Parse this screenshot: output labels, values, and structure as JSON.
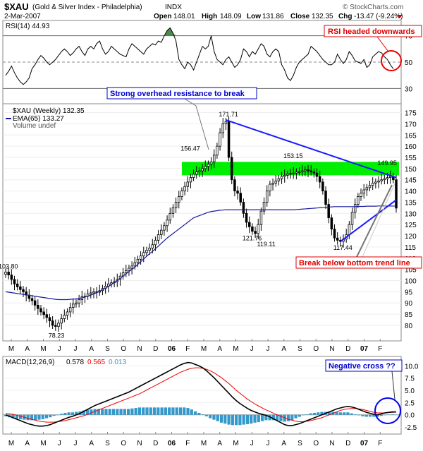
{
  "header": {
    "symbol": "$XAU",
    "description": "(Gold & Silver Index - Philadelphia)",
    "exchange": "INDX",
    "date": "2-Mar-2007",
    "open_label": "Open",
    "open": "148.01",
    "high_label": "High",
    "high": "148.09",
    "low_label": "Low",
    "low": "131.86",
    "close_label": "Close",
    "close": "132.35",
    "chg_label": "Chg",
    "chg": "-13.47 (-9.24%)",
    "copyright": "© StockCharts.com"
  },
  "colors": {
    "up_candle": "#ffffff",
    "down_candle": "#000000",
    "ema": "#1a1a9c",
    "trendline": "#1a1aff",
    "resistance_band": "#00ee00",
    "rsi_fill": "#4a8a4a",
    "macd_line": "#000000",
    "signal_line": "#ee0000",
    "histogram": "#3399cc",
    "annotation_red": "#dd0000",
    "annotation_blue": "#0000cc"
  },
  "chart_data": [
    {
      "panel": "rsi",
      "type": "line",
      "label": "RSI(14) 44.93",
      "ylim": [
        20,
        80
      ],
      "yticks": [
        30,
        50,
        70
      ],
      "levels": [
        30,
        50,
        70
      ],
      "values": [
        40,
        43,
        47,
        42,
        38,
        35,
        33,
        35,
        38,
        45,
        48,
        52,
        55,
        53,
        50,
        48,
        50,
        52,
        55,
        58,
        60,
        58,
        55,
        57,
        60,
        62,
        58,
        55,
        60,
        62,
        60,
        64,
        66,
        60,
        56,
        58,
        62,
        60,
        58,
        56,
        55,
        54,
        60,
        64,
        62,
        60,
        58,
        56,
        60,
        62,
        64,
        63,
        66,
        65,
        70,
        74,
        76,
        72,
        66,
        52,
        48,
        45,
        50,
        48,
        44,
        50,
        56,
        62,
        60,
        62,
        70,
        58,
        52,
        50,
        48,
        52,
        54,
        50,
        46,
        48,
        52,
        60,
        58,
        54,
        58,
        56,
        60,
        64,
        62,
        56,
        54,
        58,
        60,
        58,
        48,
        44,
        38,
        36,
        40,
        46,
        50,
        52,
        54,
        56,
        62,
        60,
        58,
        55,
        52,
        50,
        48,
        48,
        50,
        56,
        52,
        49,
        52,
        58,
        55,
        51,
        50,
        49,
        52,
        46,
        48,
        54,
        56,
        58,
        57,
        54,
        52,
        48,
        44.93
      ]
    },
    {
      "panel": "price",
      "type": "candlestick",
      "label": "$XAU (Weekly) 132.35",
      "ema_label": "EMA(65) 133.27",
      "volume_label": "Volume undef",
      "ylim": [
        74,
        178
      ],
      "yticks": [
        80,
        85,
        90,
        95,
        100,
        105,
        110,
        115,
        120,
        125,
        130,
        135,
        140,
        145,
        150,
        155,
        160,
        165,
        170,
        175
      ],
      "x_labels": [
        "M",
        "A",
        "M",
        "J",
        "J",
        "A",
        "S",
        "O",
        "N",
        "D",
        "06",
        "F",
        "M",
        "A",
        "M",
        "J",
        "J",
        "A",
        "S",
        "O",
        "N",
        "D",
        "07",
        "F"
      ],
      "close": [
        103.8,
        102.5,
        100.5,
        98.5,
        97.2,
        96.0,
        95.0,
        93.5,
        92.0,
        91.0,
        89.0,
        87.5,
        86.0,
        84.8,
        83.5,
        82.0,
        80.0,
        79.5,
        81.0,
        83.0,
        84.5,
        86.0,
        88.0,
        89.5,
        90.0,
        91.5,
        92.8,
        93.0,
        94.0,
        94.5,
        95.0,
        94.8,
        95.5,
        96.5,
        97.5,
        98.5,
        99.0,
        99.5,
        100.5,
        102.0,
        103.5,
        104.5,
        105.5,
        106.5,
        108.0,
        109.5,
        111.0,
        112.5,
        113.5,
        114.5,
        116.0,
        118.0,
        120.5,
        122.5,
        124.5,
        127.0,
        130.0,
        132.5,
        135.0,
        137.5,
        140.0,
        142.0,
        144.0,
        146.0,
        147.5,
        148.5,
        149.0,
        150.0,
        151.0,
        152.0,
        153.0,
        156.0,
        160.0,
        166.0,
        170.0,
        171.0,
        155.0,
        145.0,
        140.0,
        139.0,
        135.0,
        130.0,
        126.0,
        124.0,
        122.0,
        121.0,
        125.0,
        131.0,
        135.0,
        140.0,
        143.0,
        143.5,
        144.5,
        145.5,
        146.5,
        147.0,
        147.5,
        147.8,
        148.0,
        148.5,
        148.5,
        149.0,
        149.5,
        149.0,
        148.5,
        148.0,
        146.5,
        144.0,
        140.0,
        134.0,
        128.0,
        123.0,
        119.0,
        118.0,
        117.5,
        118.5,
        120.5,
        125.0,
        130.5,
        134.0,
        137.5,
        139.0,
        140.5,
        141.5,
        142.5,
        143.5,
        144.0,
        144.5,
        145.0,
        145.5,
        146.0,
        146.5,
        145.0,
        132.35
      ],
      "ema": [
        95,
        94.8,
        94.6,
        94.4,
        94.2,
        94.0,
        93.8,
        93.6,
        93.4,
        93.2,
        93.0,
        92.8,
        92.6,
        92.4,
        92.2,
        92.0,
        91.8,
        91.6,
        91.5,
        91.5,
        91.5,
        91.5,
        91.6,
        91.7,
        91.8,
        92.0,
        92.3,
        92.6,
        93.0,
        93.5,
        94.0,
        94.6,
        95.2,
        95.9,
        96.6,
        97.4,
        98.2,
        99.1,
        100.0,
        101.0,
        102.0,
        103.0,
        104.0,
        105.0,
        106.0,
        107.2,
        108.4,
        109.6,
        110.8,
        112.0,
        113.0,
        114.2,
        115.4,
        116.6,
        117.8,
        119.0,
        120.0,
        121.0,
        122.0,
        123.0,
        124.0,
        125.0,
        126.0,
        127.0,
        128.0,
        128.5,
        129.0,
        129.5,
        130.0,
        130.5,
        130.8,
        131.0,
        131.2,
        131.4,
        131.5,
        131.6,
        131.6,
        131.6,
        131.6,
        131.6,
        131.6,
        131.6,
        131.6,
        131.6,
        131.6,
        131.6,
        131.6,
        131.6,
        131.6,
        131.6,
        131.6,
        131.6,
        131.6,
        131.6,
        131.6,
        131.6,
        131.6,
        131.6,
        131.6,
        131.7,
        131.8,
        131.9,
        132.0,
        132.1,
        132.2,
        132.3,
        132.4,
        132.5,
        132.6,
        132.7,
        132.8,
        132.9,
        133.0,
        133.0,
        133.0,
        133.0,
        133.0,
        133.0,
        133.0,
        133.0,
        133.1,
        133.1,
        133.1,
        133.2,
        133.2,
        133.2,
        133.2,
        133.3,
        133.3,
        133.3,
        133.27,
        133.27,
        133.27,
        133.27
      ],
      "annotations": [
        {
          "label": "103.80",
          "x": 0,
          "y": 103.8
        },
        {
          "label": "78.23",
          "x": 17,
          "y": 78.23
        },
        {
          "label": "156.47",
          "x": 62,
          "y": 156.47
        },
        {
          "label": "121.76",
          "x": 83,
          "y": 121.76
        },
        {
          "label": "171.71",
          "x": 75,
          "y": 171.71
        },
        {
          "label": "119.11",
          "x": 88,
          "y": 119.11
        },
        {
          "label": "153.15",
          "x": 97,
          "y": 153.15
        },
        {
          "label": "117.44",
          "x": 114,
          "y": 117.44
        },
        {
          "label": "149.95",
          "x": 129,
          "y": 149.95
        }
      ],
      "callouts": {
        "resistance": "Strong overhead resistance to break",
        "breakdown": "Break below bottom trend line"
      },
      "resistance_zone": [
        147,
        153
      ],
      "upper_trendline": [
        [
          75,
          171.71
        ],
        [
          133,
          146
        ]
      ],
      "lower_trendline": [
        [
          114,
          117.44
        ],
        [
          133,
          136
        ]
      ]
    },
    {
      "panel": "macd",
      "type": "line",
      "label": "MACD(12,26,9)",
      "macd_value": "0.578",
      "signal_value": "0.565",
      "hist_value": "0.013",
      "ylim": [
        -3.5,
        11.5
      ],
      "yticks": [
        -2.5,
        0.0,
        2.5,
        5.0,
        7.5,
        10.0
      ],
      "x_labels": [
        "M",
        "A",
        "M",
        "J",
        "J",
        "A",
        "S",
        "O",
        "N",
        "D",
        "06",
        "F",
        "M",
        "A",
        "M",
        "J",
        "J",
        "A",
        "S",
        "O",
        "N",
        "D",
        "07",
        "F"
      ],
      "callout": "Negative cross ??",
      "rsi_callout": "RSI headed downwards",
      "macd": [
        0,
        -0.3,
        -0.6,
        -0.9,
        -1.2,
        -1.5,
        -1.8,
        -2.0,
        -2.2,
        -2.3,
        -2.3,
        -2.2,
        -2.0,
        -1.7,
        -1.4,
        -1.1,
        -0.8,
        -0.5,
        -0.3,
        0.0,
        0.3,
        0.7,
        1.1,
        1.5,
        1.9,
        2.2,
        2.5,
        2.8,
        3.1,
        3.4,
        3.7,
        4.0,
        4.3,
        4.6,
        5.0,
        5.4,
        5.8,
        6.2,
        6.6,
        7.0,
        7.4,
        7.8,
        8.2,
        8.6,
        9.0,
        9.4,
        9.8,
        10.2,
        10.5,
        10.7,
        10.6,
        10.3,
        10.0,
        9.6,
        9.0,
        8.3,
        7.6,
        6.8,
        6.0,
        5.2,
        4.4,
        3.6,
        2.9,
        2.3,
        1.8,
        1.3,
        0.9,
        0.6,
        0.3,
        0.1,
        -0.1,
        -0.4,
        -0.8,
        -1.2,
        -1.6,
        -2.0,
        -2.2,
        -2.2,
        -2.0,
        -1.8,
        -1.5,
        -1.2,
        -0.9,
        -0.6,
        -0.3,
        0.0,
        0.3,
        0.6,
        0.9,
        1.2,
        1.4,
        1.6,
        1.7,
        1.6,
        1.4,
        1.1,
        0.8,
        0.5,
        0.3,
        0.1,
        0.0,
        0.2,
        0.4,
        0.5,
        0.6,
        0.578
      ],
      "signal": [
        0.3,
        0.2,
        0.1,
        -0.1,
        -0.3,
        -0.5,
        -0.7,
        -0.9,
        -1.1,
        -1.3,
        -1.4,
        -1.5,
        -1.5,
        -1.5,
        -1.4,
        -1.3,
        -1.2,
        -1.0,
        -0.8,
        -0.6,
        -0.4,
        -0.2,
        0.1,
        0.4,
        0.7,
        1.0,
        1.3,
        1.6,
        1.9,
        2.2,
        2.5,
        2.8,
        3.1,
        3.4,
        3.7,
        4.0,
        4.3,
        4.7,
        5.1,
        5.5,
        5.9,
        6.3,
        6.7,
        7.1,
        7.5,
        7.9,
        8.3,
        8.7,
        9.0,
        9.3,
        9.5,
        9.6,
        9.6,
        9.5,
        9.3,
        9.0,
        8.6,
        8.1,
        7.6,
        7.0,
        6.4,
        5.7,
        5.0,
        4.4,
        3.8,
        3.2,
        2.7,
        2.2,
        1.8,
        1.4,
        1.0,
        0.7,
        0.3,
        0.0,
        -0.3,
        -0.6,
        -0.9,
        -1.1,
        -1.3,
        -1.4,
        -1.4,
        -1.3,
        -1.2,
        -1.0,
        -0.8,
        -0.6,
        -0.3,
        0.0,
        0.3,
        0.6,
        0.9,
        1.1,
        1.2,
        1.3,
        1.3,
        1.2,
        1.1,
        0.9,
        0.7,
        0.5,
        0.4,
        0.4,
        0.4,
        0.45,
        0.5,
        0.565
      ],
      "hist": [
        -0.3,
        -0.5,
        -0.7,
        -0.8,
        -0.9,
        -1.0,
        -1.1,
        -1.1,
        -1.1,
        -1.0,
        -0.9,
        -0.7,
        -0.5,
        -0.2,
        0.0,
        0.2,
        0.4,
        0.5,
        0.5,
        0.6,
        0.7,
        0.9,
        1.0,
        1.1,
        1.2,
        1.2,
        1.2,
        1.2,
        1.2,
        1.2,
        1.2,
        1.2,
        1.2,
        1.2,
        1.3,
        1.4,
        1.5,
        1.5,
        1.5,
        1.5,
        1.5,
        1.5,
        1.5,
        1.5,
        1.5,
        1.5,
        1.5,
        1.5,
        1.5,
        1.4,
        1.1,
        0.7,
        0.4,
        0.1,
        -0.3,
        -0.7,
        -1.0,
        -1.3,
        -1.6,
        -1.8,
        -2.0,
        -2.1,
        -2.1,
        -2.1,
        -2.0,
        -1.9,
        -1.8,
        -1.6,
        -1.5,
        -1.3,
        -1.1,
        -1.1,
        -1.1,
        -1.2,
        -1.3,
        -1.4,
        -1.3,
        -1.1,
        -0.7,
        -0.4,
        -0.1,
        0.1,
        0.3,
        0.4,
        0.5,
        0.6,
        0.6,
        0.6,
        0.6,
        0.6,
        0.5,
        0.5,
        0.5,
        0.3,
        0.1,
        -0.1,
        -0.3,
        -0.4,
        -0.4,
        -0.4,
        -0.4,
        -0.2,
        0.0,
        0.05,
        0.1,
        0.013
      ]
    }
  ]
}
